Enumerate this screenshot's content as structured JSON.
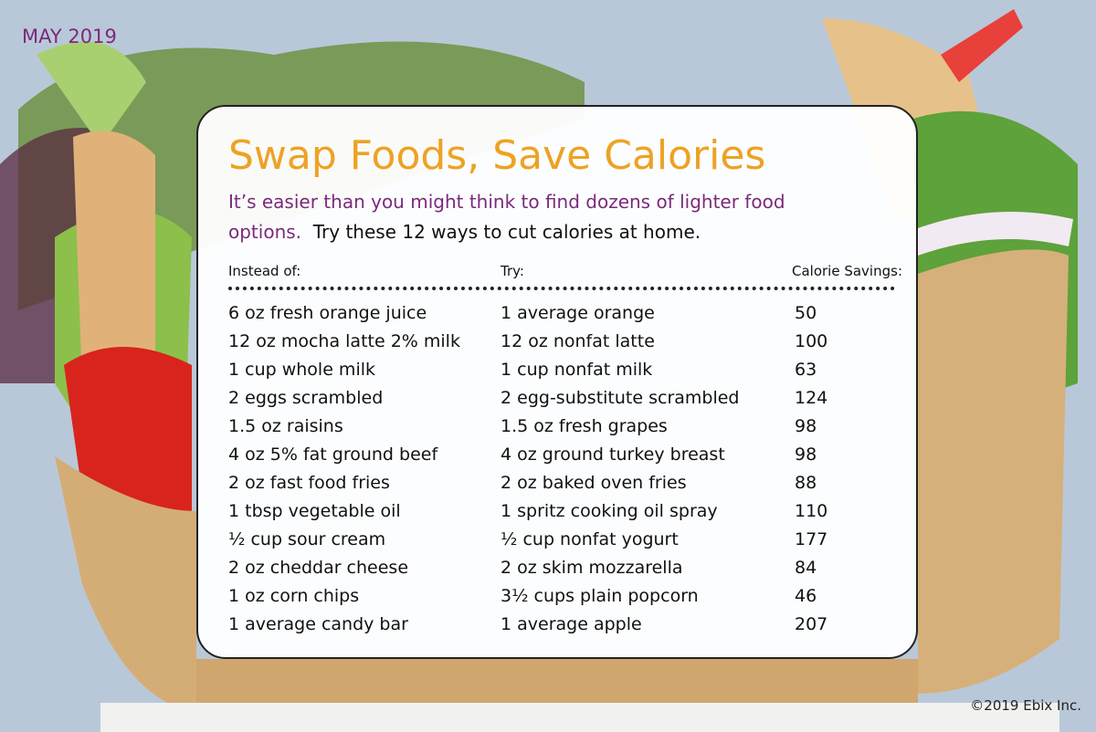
{
  "header": {
    "date": "MAY 2019",
    "title": "Swap Foods, Save Calories",
    "subtitle_highlight": "It’s easier than you might think to find dozens of lighter food options.",
    "subtitle_rest": "Try these 12 ways to cut calories at home."
  },
  "table": {
    "columns": [
      "Instead of:",
      "Try:",
      "Calorie Savings:"
    ],
    "rows": [
      [
        "6 oz fresh orange juice",
        "1 average orange",
        50
      ],
      [
        "12 oz mocha latte 2% milk",
        "12 oz nonfat latte",
        100
      ],
      [
        "1 cup whole milk",
        "1 cup nonfat milk",
        63
      ],
      [
        "2 eggs scrambled",
        "2 egg-substitute scrambled",
        124
      ],
      [
        "1.5 oz raisins",
        "1.5 oz fresh grapes",
        98
      ],
      [
        "4 oz 5% fat ground beef",
        "4 oz ground turkey breast",
        98
      ],
      [
        "2 oz fast food fries",
        "2 oz baked oven fries",
        88
      ],
      [
        "1 tbsp vegetable oil",
        "1 spritz cooking oil spray",
        110
      ],
      [
        "½ cup sour cream",
        "½ cup nonfat yogurt",
        177
      ],
      [
        "2 oz cheddar cheese",
        "2 oz skim mozzarella",
        84
      ],
      [
        "1 oz corn chips",
        "3½ cups plain popcorn",
        46
      ],
      [
        "1 average candy bar",
        "1 average apple",
        207
      ]
    ]
  },
  "footer": {
    "copyright": "©2019 Ebix Inc."
  }
}
